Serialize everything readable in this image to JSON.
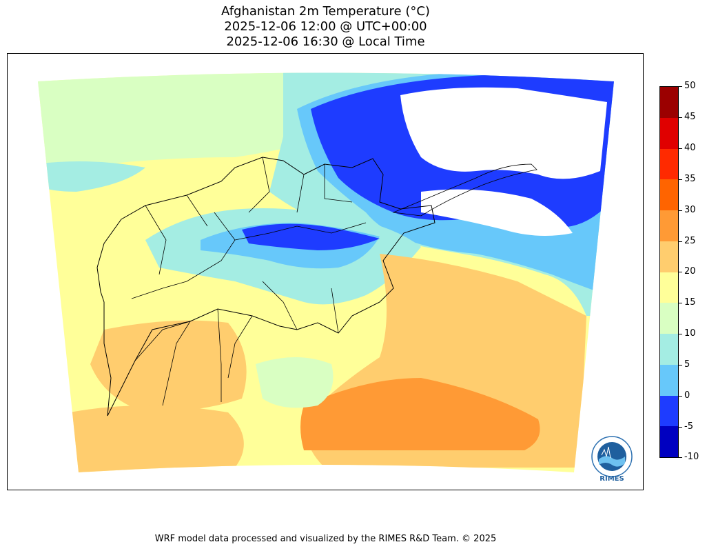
{
  "title": {
    "line1": "Afghanistan 2m Temperature (°C)",
    "line2": "2025-12-06 12:00 @ UTC+00:00",
    "line3": "2025-12-06 16:30 @ Local Time"
  },
  "colorbar": {
    "levels": [
      "50",
      "45",
      "40",
      "35",
      "30",
      "25",
      "20",
      "15",
      "10",
      "5",
      "0",
      "-5",
      "-10"
    ],
    "colors": [
      "#9b0000",
      "#e00000",
      "#ff2a00",
      "#ff6400",
      "#ff9a35",
      "#ffcd6e",
      "#ffff99",
      "#d9ffc2",
      "#a4ede3",
      "#67c8fa",
      "#1e3cff",
      "#0000c0"
    ]
  },
  "logo": {
    "text": "RIMES"
  },
  "footer": "WRF model data processed and visualized by the RIMES R&D Team. © 2025"
}
